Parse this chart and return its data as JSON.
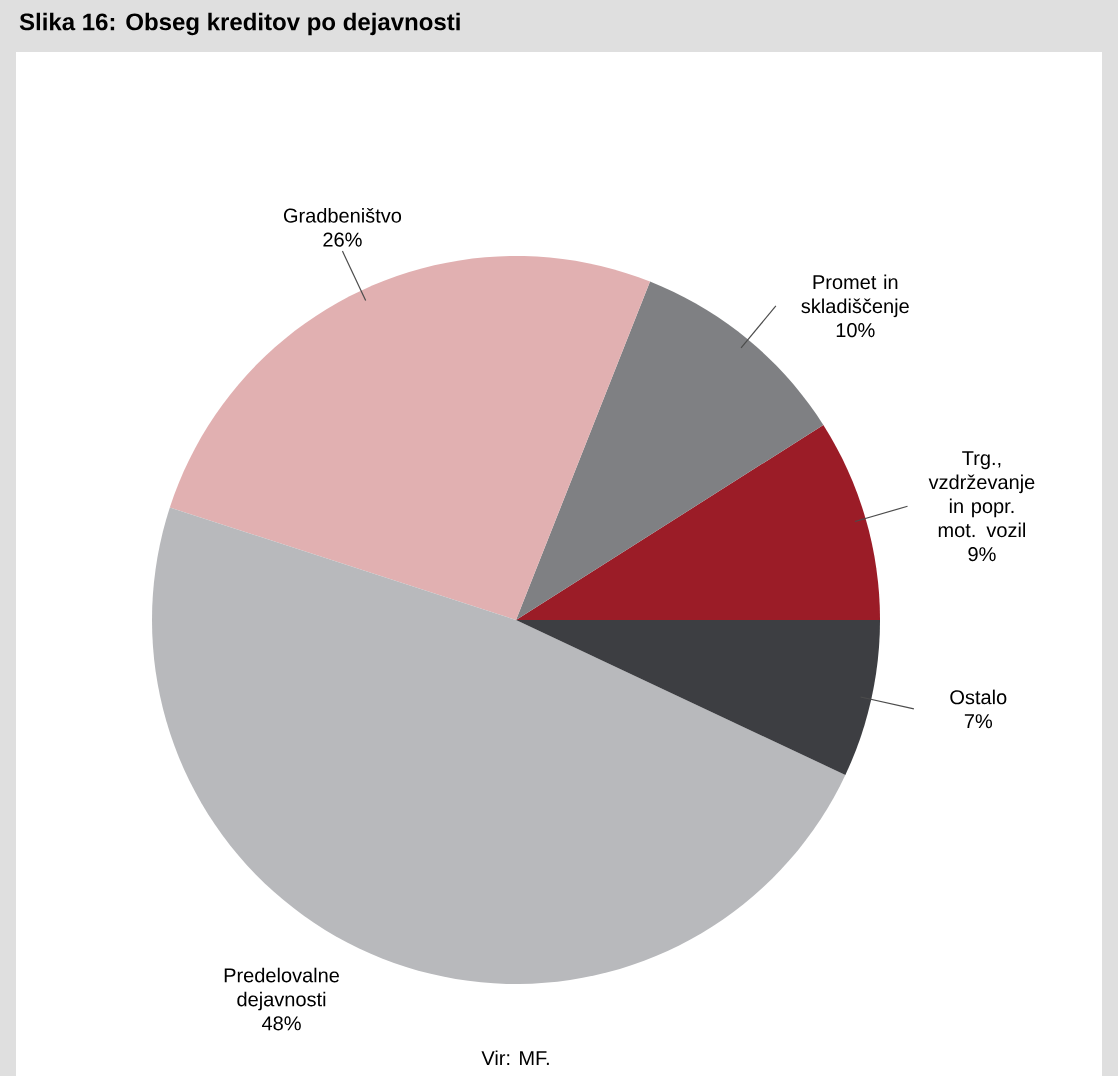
{
  "chart_data": {
    "type": "pie",
    "title": "Slika 16: Obseg kreditov po dejavnosti",
    "categories": [
      "Trg., vzdrževanje in popr. mot. vozil",
      "Promet in skladiščenje",
      "Gradbeništvo",
      "Predelovalne dejavnosti",
      "Ostalo"
    ],
    "values": [
      9,
      10,
      26,
      48,
      7
    ],
    "value_labels": [
      "9%",
      "10%",
      "26%",
      "48%",
      "7%"
    ],
    "colors": [
      "#9b1c27",
      "#7f8083",
      "#e1b0b1",
      "#b8b9bc",
      "#3d3e42"
    ],
    "annotations": [
      "Vir: MF."
    ]
  }
}
